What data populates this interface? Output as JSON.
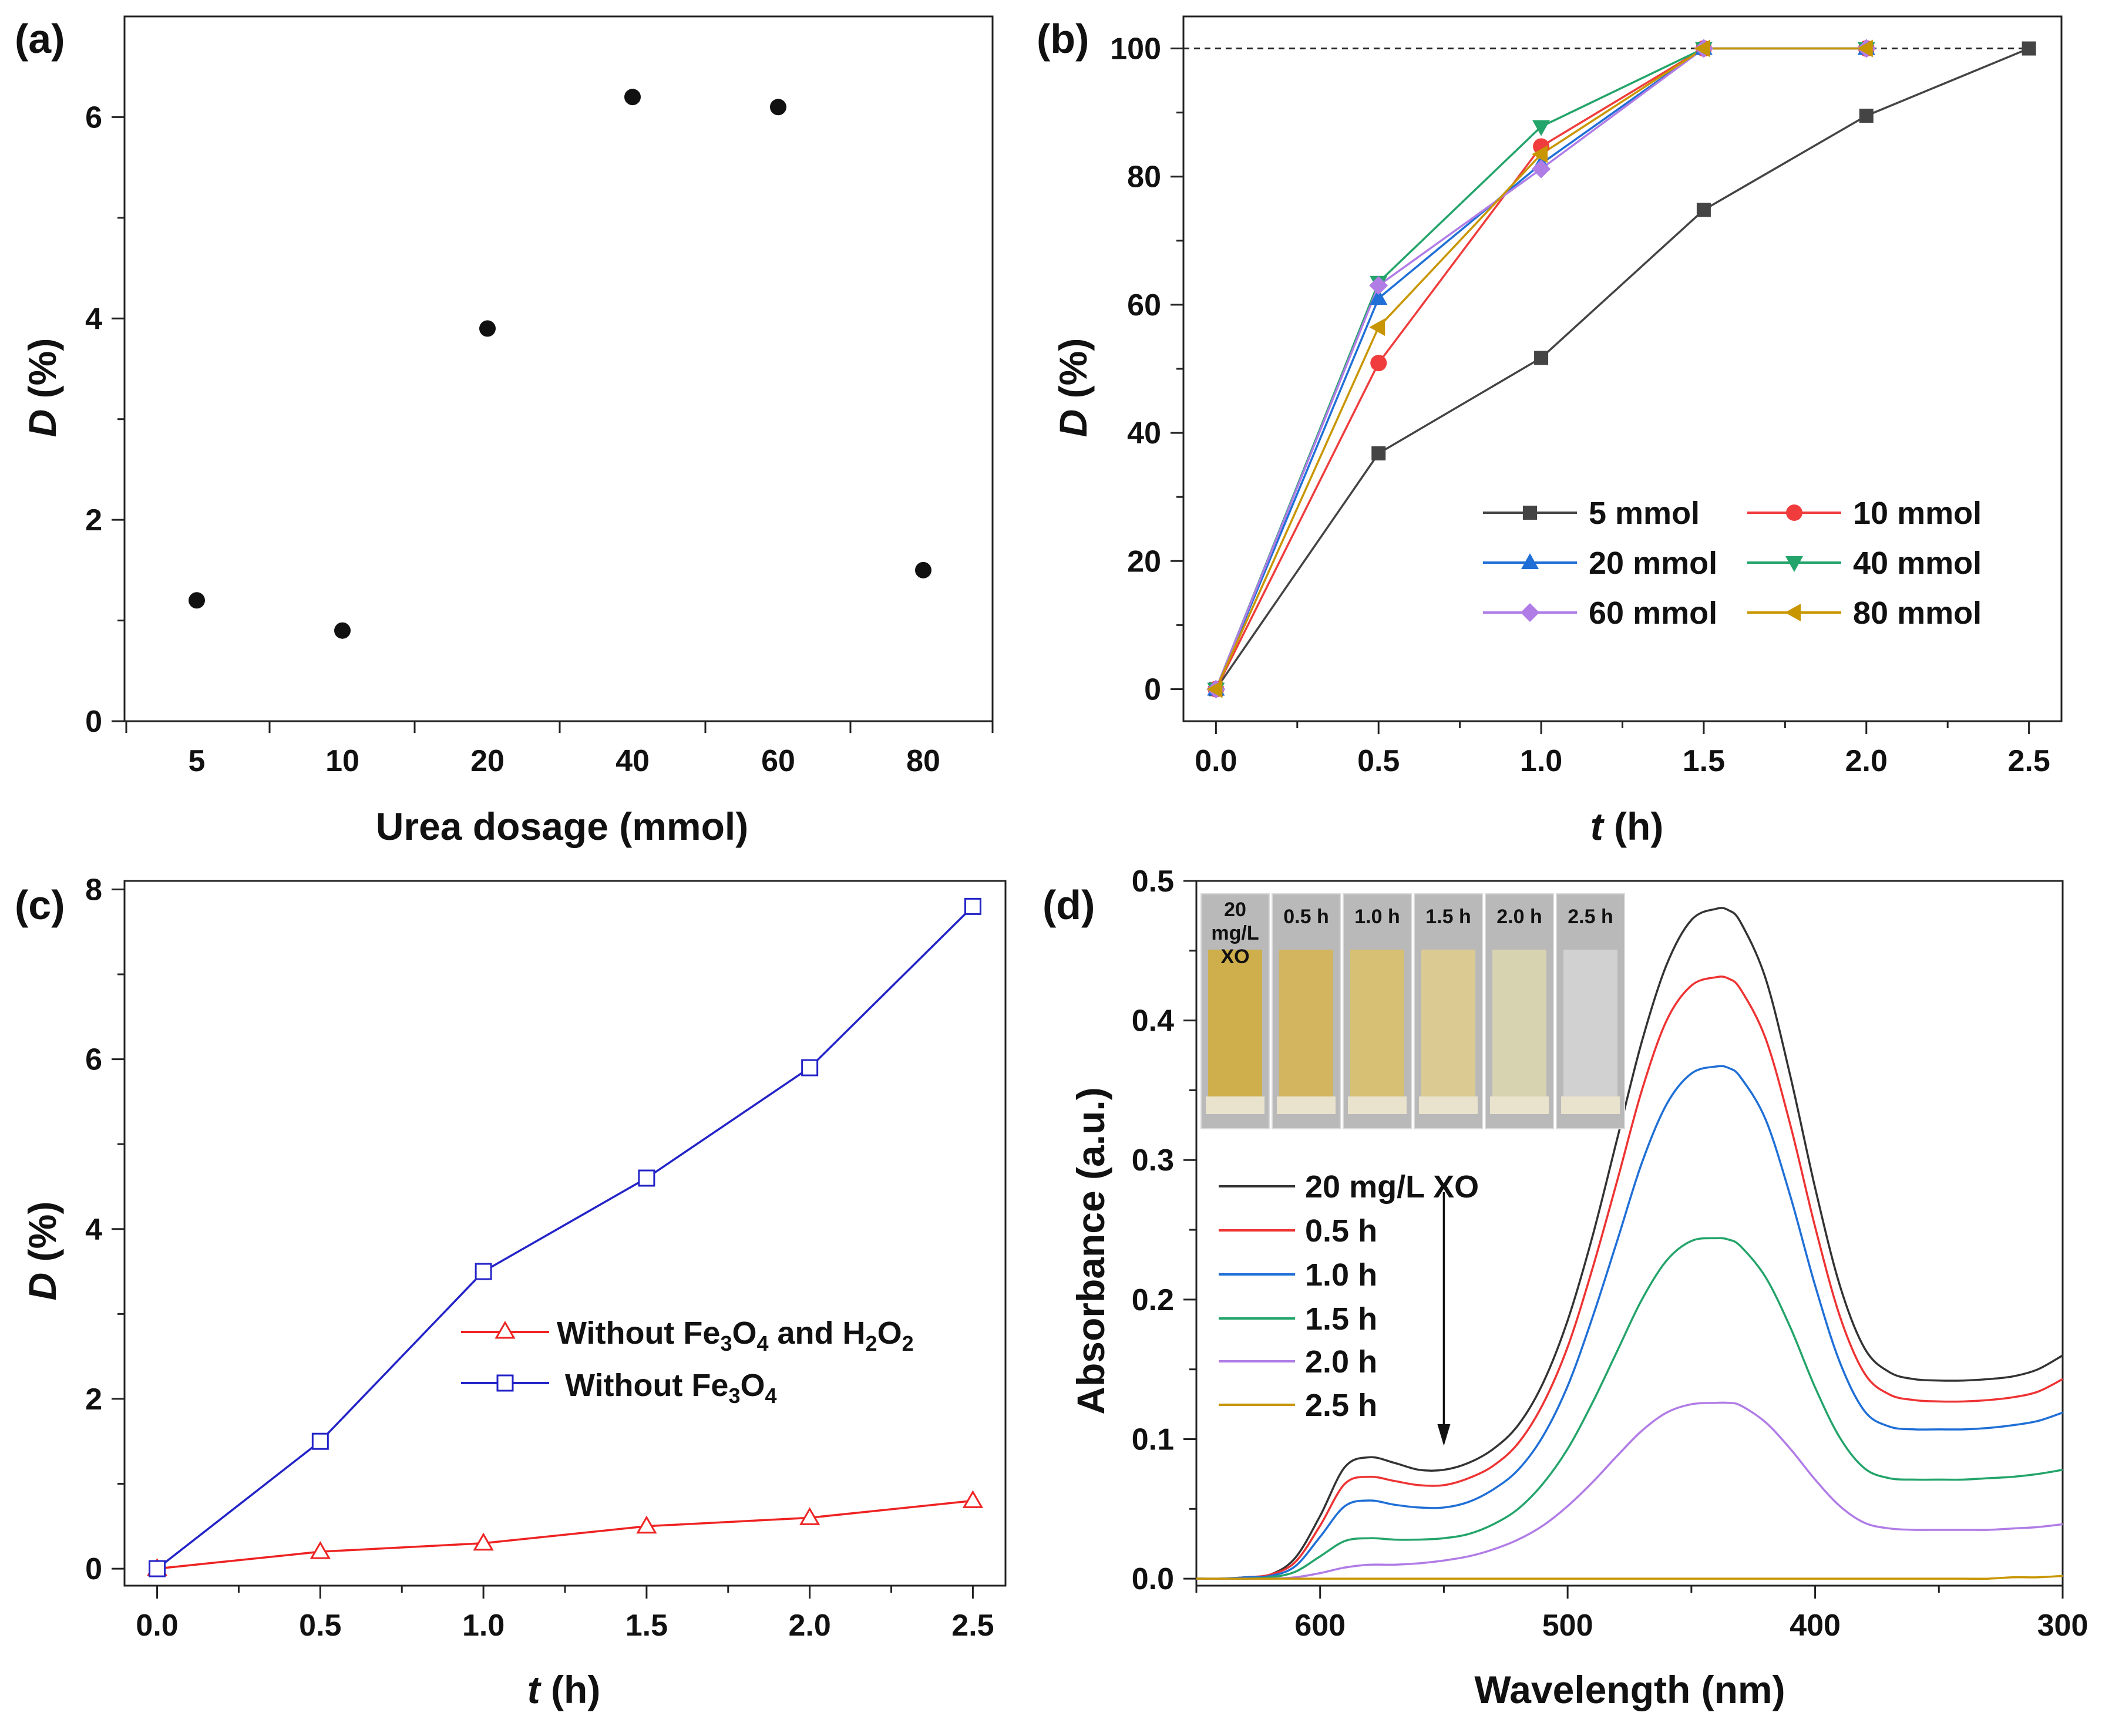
{
  "chart_data": [
    {
      "panel": "(a)",
      "type": "scatter",
      "xlabel": "Urea dosage (mmol)",
      "ylabel_italic": "D",
      "ylabel_rest": " (%)",
      "categories": [
        "5",
        "10",
        "20",
        "40",
        "60",
        "80"
      ],
      "values": [
        1.2,
        0.9,
        3.9,
        6.2,
        6.1,
        1.5
      ],
      "ylim": [
        0,
        7
      ],
      "yticks": [
        0,
        2,
        4,
        6
      ],
      "colors": {
        "points": "#111111"
      }
    },
    {
      "panel": "(b)",
      "type": "line",
      "xlabel_italic": "t",
      "xlabel_rest": " (h)",
      "ylabel_italic": "D",
      "ylabel_rest": " (%)",
      "xlim": [
        -0.1,
        2.6
      ],
      "ylim": [
        -5,
        105
      ],
      "xticks": [
        "0.0",
        "0.5",
        "1.0",
        "1.5",
        "2.0",
        "2.5"
      ],
      "yticks": [
        "0",
        "20",
        "40",
        "60",
        "80",
        "100"
      ],
      "reference_line": 100,
      "legend_position": "bottom-right",
      "series": [
        {
          "name": "5 mmol",
          "color": "#444444",
          "marker": "square",
          "x": [
            0,
            0.5,
            1.0,
            1.5,
            2.0,
            2.5
          ],
          "y": [
            0,
            36.8,
            51.7,
            74.8,
            89.5,
            100
          ]
        },
        {
          "name": "10 mmol",
          "color": "#f03c3c",
          "marker": "circle",
          "x": [
            0,
            0.5,
            1.0,
            1.5,
            2.0
          ],
          "y": [
            0,
            50.9,
            84.7,
            100,
            100
          ]
        },
        {
          "name": "20 mmol",
          "color": "#1f6fd6",
          "marker": "triangle-up",
          "x": [
            0,
            0.5,
            1.0,
            1.5,
            2.0
          ],
          "y": [
            0,
            61.0,
            82.0,
            100,
            100
          ]
        },
        {
          "name": "40 mmol",
          "color": "#23a46a",
          "marker": "triangle-down",
          "x": [
            0,
            0.5,
            1.0,
            1.5,
            2.0
          ],
          "y": [
            0,
            63.5,
            87.8,
            100,
            100
          ]
        },
        {
          "name": "60 mmol",
          "color": "#b07ce6",
          "marker": "diamond",
          "x": [
            0,
            0.5,
            1.0,
            1.5,
            2.0
          ],
          "y": [
            0,
            63.0,
            81.2,
            100,
            100
          ]
        },
        {
          "name": "80 mmol",
          "color": "#c89600",
          "marker": "triangle-left",
          "x": [
            0,
            0.5,
            1.0,
            1.5,
            2.0
          ],
          "y": [
            0,
            56.5,
            83.5,
            100,
            100
          ]
        }
      ]
    },
    {
      "panel": "(c)",
      "type": "line",
      "xlabel_italic": "t",
      "xlabel_rest": " (h)",
      "ylabel_italic": "D",
      "ylabel_rest": " (%)",
      "xlim": [
        -0.1,
        2.6
      ],
      "ylim": [
        -0.2,
        8.1
      ],
      "xticks": [
        "0.0",
        "0.5",
        "1.0",
        "1.5",
        "2.0",
        "2.5"
      ],
      "yticks": [
        "0",
        "2",
        "4",
        "6",
        "8"
      ],
      "legend_position": "center-right",
      "series": [
        {
          "name": "Without Fe3O4 and H2O2",
          "color": "#ee2222",
          "marker": "triangle-open",
          "x": [
            0,
            0.5,
            1.0,
            1.5,
            2.0,
            2.5
          ],
          "y": [
            0,
            0.2,
            0.3,
            0.5,
            0.6,
            0.8
          ]
        },
        {
          "name": "Without Fe3O4",
          "color": "#2323c8",
          "marker": "square-open",
          "x": [
            0,
            0.5,
            1.0,
            1.5,
            2.0,
            2.5
          ],
          "y": [
            0,
            1.5,
            3.5,
            4.6,
            5.9,
            7.8
          ]
        }
      ]
    },
    {
      "panel": "(d)",
      "type": "line",
      "xlabel": "Wavelength (nm)",
      "ylabel": "Absorbance (a.u.)",
      "xlim": [
        650,
        300
      ],
      "ylim": [
        -0.005,
        0.5
      ],
      "xticks": [
        "600",
        "500",
        "400",
        "300"
      ],
      "yticks": [
        "0.0",
        "0.1",
        "0.2",
        "0.3",
        "0.4",
        "0.5"
      ],
      "legend_position": "center-left",
      "x": [
        650,
        640,
        630,
        620,
        610,
        600,
        590,
        580,
        570,
        560,
        550,
        540,
        530,
        520,
        510,
        500,
        490,
        480,
        470,
        460,
        450,
        440,
        435,
        430,
        420,
        410,
        400,
        390,
        380,
        370,
        360,
        350,
        340,
        330,
        320,
        310,
        300
      ],
      "series": [
        {
          "name": "20 mg/L XO",
          "color": "#333333",
          "y": [
            0,
            0,
            0.001,
            0.003,
            0.015,
            0.045,
            0.08,
            0.087,
            0.083,
            0.078,
            0.078,
            0.083,
            0.093,
            0.11,
            0.14,
            0.185,
            0.245,
            0.315,
            0.385,
            0.44,
            0.472,
            0.48,
            0.479,
            0.47,
            0.43,
            0.36,
            0.28,
            0.21,
            0.165,
            0.148,
            0.143,
            0.142,
            0.142,
            0.143,
            0.145,
            0.15,
            0.16
          ]
        },
        {
          "name": "0.5 h",
          "color": "#ee3333",
          "y": [
            0,
            0,
            0.001,
            0.003,
            0.012,
            0.038,
            0.068,
            0.073,
            0.07,
            0.067,
            0.067,
            0.072,
            0.081,
            0.097,
            0.125,
            0.166,
            0.222,
            0.285,
            0.35,
            0.4,
            0.425,
            0.431,
            0.43,
            0.422,
            0.387,
            0.325,
            0.252,
            0.188,
            0.147,
            0.132,
            0.128,
            0.127,
            0.127,
            0.128,
            0.13,
            0.134,
            0.143
          ]
        },
        {
          "name": "1.0 h",
          "color": "#1f6fd6",
          "y": [
            0,
            0,
            0.001,
            0.002,
            0.009,
            0.03,
            0.052,
            0.056,
            0.053,
            0.051,
            0.051,
            0.055,
            0.064,
            0.078,
            0.102,
            0.138,
            0.187,
            0.242,
            0.298,
            0.34,
            0.362,
            0.367,
            0.366,
            0.359,
            0.329,
            0.274,
            0.21,
            0.155,
            0.12,
            0.109,
            0.107,
            0.107,
            0.107,
            0.108,
            0.11,
            0.113,
            0.119
          ]
        },
        {
          "name": "1.5 h",
          "color": "#23a46a",
          "y": [
            0,
            0,
            0,
            0.001,
            0.005,
            0.016,
            0.027,
            0.029,
            0.028,
            0.028,
            0.029,
            0.032,
            0.039,
            0.05,
            0.068,
            0.093,
            0.126,
            0.163,
            0.2,
            0.228,
            0.242,
            0.244,
            0.243,
            0.238,
            0.216,
            0.18,
            0.137,
            0.101,
            0.079,
            0.072,
            0.071,
            0.071,
            0.071,
            0.072,
            0.073,
            0.075,
            0.078
          ]
        },
        {
          "name": "2.0 h",
          "color": "#b07ce6",
          "y": [
            0,
            0,
            0,
            0,
            0.001,
            0.004,
            0.008,
            0.01,
            0.01,
            0.011,
            0.013,
            0.016,
            0.021,
            0.028,
            0.038,
            0.052,
            0.069,
            0.088,
            0.106,
            0.119,
            0.125,
            0.126,
            0.126,
            0.124,
            0.112,
            0.093,
            0.071,
            0.052,
            0.04,
            0.036,
            0.035,
            0.035,
            0.035,
            0.035,
            0.036,
            0.037,
            0.039
          ]
        },
        {
          "name": "2.5 h",
          "color": "#c89600",
          "y": [
            0,
            0,
            0,
            0,
            0,
            0,
            0,
            0,
            0,
            0,
            0,
            0,
            0,
            0,
            0,
            0,
            0,
            0,
            0,
            0,
            0,
            0,
            0,
            0,
            0,
            0,
            0,
            0,
            0,
            0,
            0,
            0,
            0,
            0,
            0.001,
            0.001,
            0.002
          ]
        }
      ],
      "annotation_arrow_at": 550,
      "inset": {
        "labels": [
          "20\nmg/L\nXO",
          "0.5 h",
          "1.0 h",
          "1.5 h",
          "2.0 h",
          "2.5 h"
        ],
        "colors": [
          "#cfae45",
          "#d3b458",
          "#d8c070",
          "#dccb8f",
          "#d8d4b0",
          "#d2d2d2"
        ]
      }
    }
  ]
}
